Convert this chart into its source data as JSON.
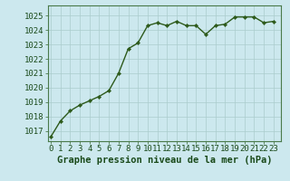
{
  "x": [
    0,
    1,
    2,
    3,
    4,
    5,
    6,
    7,
    8,
    9,
    10,
    11,
    12,
    13,
    14,
    15,
    16,
    17,
    18,
    19,
    20,
    21,
    22,
    23
  ],
  "y": [
    1016.6,
    1017.7,
    1018.4,
    1018.8,
    1019.1,
    1019.4,
    1019.8,
    1021.0,
    1022.7,
    1023.1,
    1024.3,
    1024.5,
    1024.3,
    1024.6,
    1024.3,
    1024.3,
    1023.7,
    1024.3,
    1024.4,
    1024.9,
    1024.9,
    1024.9,
    1024.5,
    1024.6
  ],
  "line_color": "#2d5a1b",
  "marker": "D",
  "marker_size": 2.2,
  "bg_color": "#cce8ee",
  "grid_color": "#aacccc",
  "ylabel_ticks": [
    1017,
    1018,
    1019,
    1020,
    1021,
    1022,
    1023,
    1024,
    1025
  ],
  "ylim": [
    1016.3,
    1025.7
  ],
  "xlim": [
    -0.3,
    23.8
  ],
  "xlabel": "Graphe pression niveau de la mer (hPa)",
  "text_color": "#1a4a1a",
  "xlabel_fontsize": 7.5,
  "tick_fontsize": 6.5,
  "line_width": 1.0,
  "border_color": "#4a7a4a"
}
